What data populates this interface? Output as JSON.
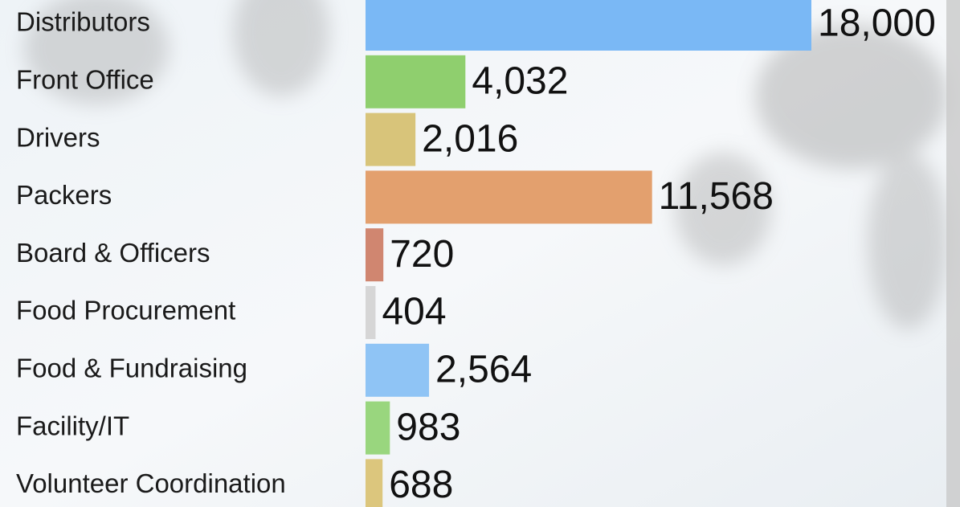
{
  "chart_data": {
    "type": "barh",
    "categories": [
      "Distributors",
      "Front Office",
      "Drivers",
      "Packers",
      "Board & Officers",
      "Food Procurement",
      "Food & Fundraising",
      "Facility/IT",
      "Volunteer Coordination"
    ],
    "values": [
      18000,
      4032,
      2016,
      11568,
      720,
      404,
      2564,
      983,
      688
    ],
    "value_labels": [
      "18,000",
      "4,032",
      "2,016",
      "11,568",
      "720",
      "404",
      "2,564",
      "983",
      "688"
    ],
    "colors": [
      "#7ab8f5",
      "#8fcf6e",
      "#d8c47a",
      "#e3a06e",
      "#d08670",
      "#d6d6d6",
      "#8fc4f5",
      "#99d67e",
      "#dcc67d"
    ]
  }
}
